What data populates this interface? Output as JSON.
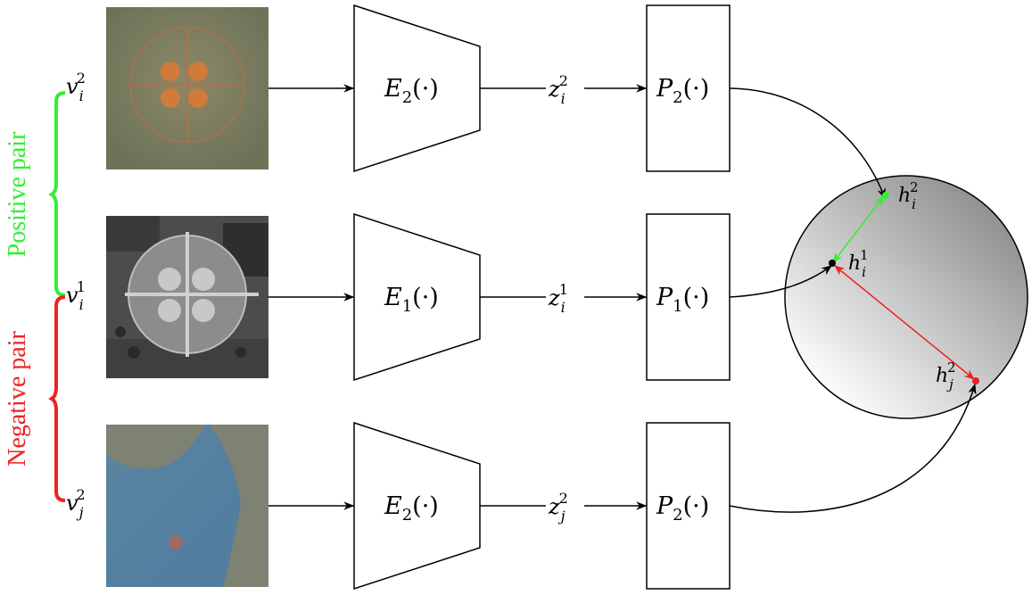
{
  "inputs": {
    "top": {
      "var": "v",
      "sup": "2",
      "sub": "i"
    },
    "middle": {
      "var": "v",
      "sup": "1",
      "sub": "i"
    },
    "bottom": {
      "var": "v",
      "sup": "2",
      "sub": "j"
    }
  },
  "encoders": {
    "top": {
      "name": "E",
      "sub": "2",
      "arg": "(·)"
    },
    "middle": {
      "name": "E",
      "sub": "1",
      "arg": "(·)"
    },
    "bottom": {
      "name": "E",
      "sub": "2",
      "arg": "(·)"
    }
  },
  "latents": {
    "top": {
      "var": "z",
      "sup": "2",
      "sub": "i"
    },
    "middle": {
      "var": "z",
      "sup": "1",
      "sub": "i"
    },
    "bottom": {
      "var": "z",
      "sup": "2",
      "sub": "j"
    }
  },
  "projectors": {
    "top": {
      "name": "P",
      "sub": "2",
      "arg": "(·)"
    },
    "middle": {
      "name": "P",
      "sub": "1",
      "arg": "(·)"
    },
    "bottom": {
      "name": "P",
      "sub": "2",
      "arg": "(·)"
    }
  },
  "embeddings": {
    "hi2": {
      "var": "h",
      "sup": "2",
      "sub": "i"
    },
    "hi1": {
      "var": "h",
      "sup": "1",
      "sub": "i"
    },
    "hj2": {
      "var": "h",
      "sup": "2",
      "sub": "j"
    }
  },
  "pairs": {
    "positive": "Positive pair",
    "negative": "Negative pair"
  },
  "colors": {
    "positive": "#33ee33",
    "negative": "#ee2222",
    "stroke": "#000000"
  }
}
